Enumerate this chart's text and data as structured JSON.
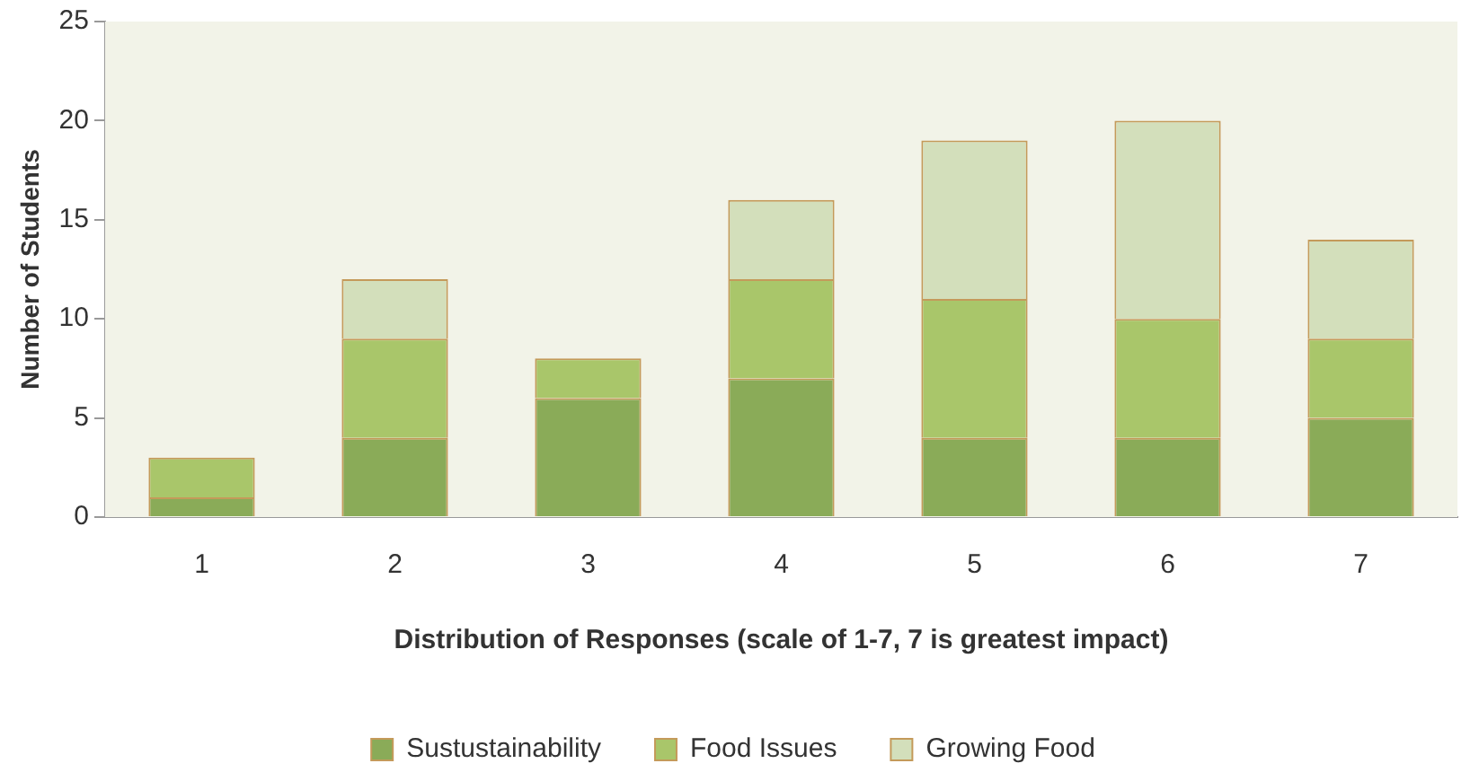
{
  "chart_data": {
    "type": "bar",
    "stacked": true,
    "xlabel": "Distribution of Responses (scale of 1-7, 7 is greatest impact)",
    "ylabel": "Number of Students",
    "categories": [
      "1",
      "2",
      "3",
      "4",
      "5",
      "6",
      "7"
    ],
    "series": [
      {
        "name": "Sustustainability",
        "color": "#8aab58",
        "values": [
          1,
          4,
          6,
          7,
          4,
          4,
          5
        ]
      },
      {
        "name": "Food Issues",
        "color": "#a9c66a",
        "values": [
          2,
          5,
          2,
          5,
          7,
          6,
          4
        ]
      },
      {
        "name": "Growing Food",
        "color": "#d3dfbb",
        "values": [
          0,
          3,
          0,
          4,
          8,
          10,
          5
        ]
      }
    ],
    "ylim": [
      0,
      25
    ],
    "yticks": [
      0,
      5,
      10,
      15,
      20,
      25
    ],
    "grid": false,
    "legend": "bottom"
  }
}
